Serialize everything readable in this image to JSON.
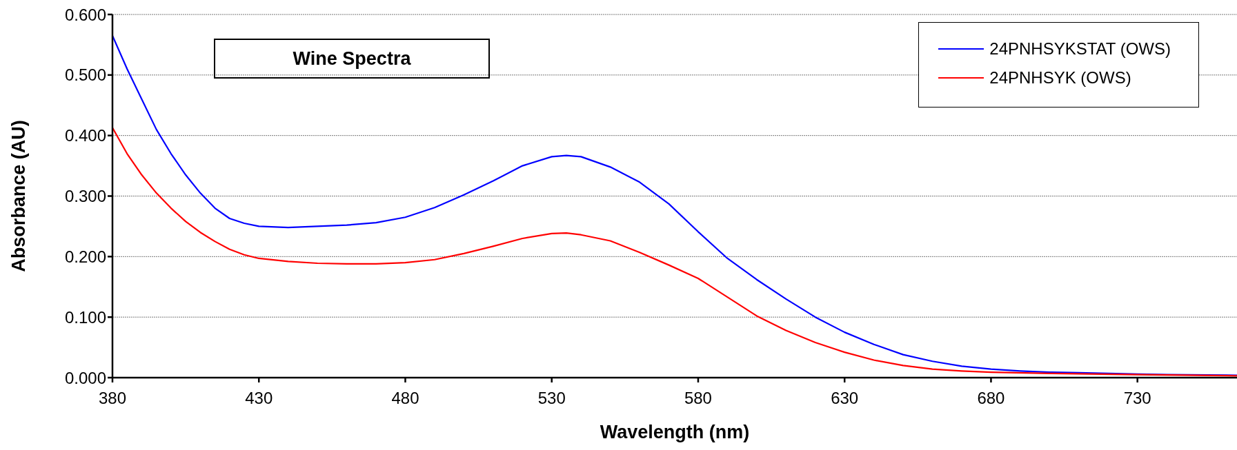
{
  "chart_data": {
    "type": "line",
    "title": "Wine Spectra",
    "xlabel": "Wavelength (nm)",
    "ylabel": "Absorbance (AU)",
    "xlim": [
      380,
      764
    ],
    "xticks": [
      380,
      430,
      480,
      530,
      580,
      630,
      680,
      730
    ],
    "ylim": [
      0,
      0.6
    ],
    "yticks": [
      {
        "value": 0,
        "label": "0.000"
      },
      {
        "value": 0.1,
        "label": "0.100"
      },
      {
        "value": 0.2,
        "label": "0.200"
      },
      {
        "value": 0.3,
        "label": "0.300"
      },
      {
        "value": 0.4,
        "label": "0.400"
      },
      {
        "value": 0.5,
        "label": "0.500"
      },
      {
        "value": 0.6,
        "label": "0.600"
      }
    ],
    "grid": "y",
    "legend": "top right",
    "marker": "none",
    "line_style": "solid",
    "series": [
      {
        "name": "24PNHSYKSTAT (OWS)",
        "color": "#0000ff",
        "x": [
          380,
          385,
          390,
          395,
          400,
          405,
          410,
          415,
          420,
          425,
          430,
          440,
          450,
          460,
          470,
          480,
          490,
          500,
          510,
          520,
          530,
          535,
          540,
          550,
          560,
          570,
          580,
          590,
          600,
          610,
          620,
          630,
          640,
          650,
          660,
          670,
          680,
          690,
          700,
          710,
          720,
          730,
          740,
          764
        ],
        "values": [
          0.565,
          0.51,
          0.46,
          0.41,
          0.37,
          0.335,
          0.305,
          0.28,
          0.263,
          0.255,
          0.25,
          0.248,
          0.25,
          0.252,
          0.256,
          0.265,
          0.281,
          0.302,
          0.325,
          0.35,
          0.365,
          0.367,
          0.365,
          0.348,
          0.323,
          0.287,
          0.241,
          0.197,
          0.162,
          0.13,
          0.1,
          0.075,
          0.055,
          0.038,
          0.027,
          0.019,
          0.014,
          0.011,
          0.009,
          0.008,
          0.007,
          0.006,
          0.005,
          0.004
        ]
      },
      {
        "name": "24PNHSYK (OWS)",
        "color": "#ff0000",
        "x": [
          380,
          385,
          390,
          395,
          400,
          405,
          410,
          415,
          420,
          425,
          430,
          440,
          450,
          460,
          470,
          480,
          490,
          500,
          510,
          520,
          530,
          535,
          540,
          550,
          560,
          570,
          580,
          590,
          600,
          610,
          620,
          630,
          640,
          650,
          660,
          670,
          680,
          700,
          730,
          764
        ],
        "values": [
          0.413,
          0.37,
          0.335,
          0.305,
          0.28,
          0.258,
          0.24,
          0.225,
          0.212,
          0.203,
          0.197,
          0.192,
          0.189,
          0.188,
          0.188,
          0.19,
          0.195,
          0.205,
          0.217,
          0.23,
          0.238,
          0.239,
          0.236,
          0.226,
          0.207,
          0.186,
          0.164,
          0.133,
          0.102,
          0.078,
          0.058,
          0.042,
          0.029,
          0.02,
          0.014,
          0.011,
          0.009,
          0.007,
          0.005,
          0.003
        ]
      }
    ]
  }
}
